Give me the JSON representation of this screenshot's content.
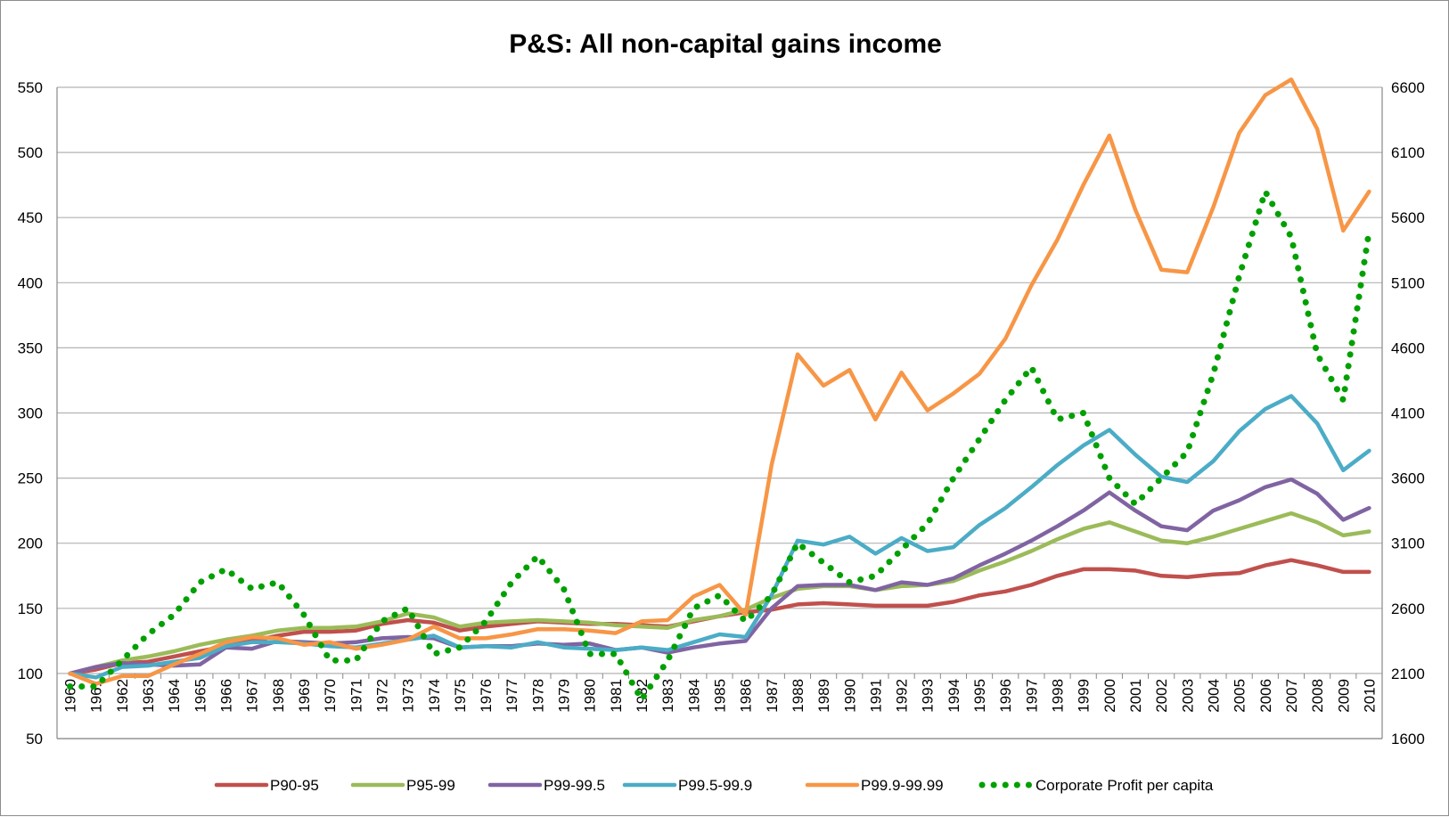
{
  "chart_data": {
    "type": "line",
    "title": "P&S: All non-capital gains income",
    "xlabel": "",
    "ylabel": "",
    "y2label": "",
    "ylim": [
      50,
      550
    ],
    "y2lim": [
      1600,
      6600
    ],
    "yticks": [
      50,
      100,
      150,
      200,
      250,
      300,
      350,
      400,
      450,
      500,
      550
    ],
    "y2ticks": [
      1600,
      2100,
      2600,
      3100,
      3600,
      4100,
      4600,
      5100,
      5600,
      6100,
      6600
    ],
    "grid": true,
    "legend_position": "bottom",
    "x": [
      1960,
      1961,
      1962,
      1963,
      1964,
      1965,
      1966,
      1967,
      1968,
      1969,
      1970,
      1971,
      1972,
      1973,
      1974,
      1975,
      1976,
      1977,
      1978,
      1979,
      1980,
      1981,
      1982,
      1983,
      1984,
      1985,
      1986,
      1987,
      1988,
      1989,
      1990,
      1991,
      1992,
      1993,
      1994,
      1995,
      1996,
      1997,
      1998,
      1999,
      2000,
      2001,
      2002,
      2003,
      2004,
      2005,
      2006,
      2007,
      2008,
      2009,
      2010
    ],
    "series": [
      {
        "name": "P90-95",
        "color": "#c0504d",
        "style": "solid",
        "axis": "left",
        "values": [
          100,
          103,
          108,
          109,
          113,
          117,
          121,
          125,
          129,
          132,
          132,
          133,
          138,
          141,
          139,
          133,
          136,
          138,
          140,
          139,
          138,
          138,
          137,
          136,
          140,
          144,
          147,
          149,
          153,
          154,
          153,
          152,
          152,
          152,
          155,
          160,
          163,
          168,
          175,
          180,
          180,
          179,
          175,
          174,
          176,
          177,
          183,
          187,
          183,
          178,
          178
        ]
      },
      {
        "name": "P95-99",
        "color": "#9bbb59",
        "style": "solid",
        "axis": "left",
        "values": [
          100,
          105,
          110,
          113,
          117,
          122,
          126,
          129,
          133,
          135,
          135,
          136,
          140,
          146,
          143,
          136,
          139,
          140,
          141,
          140,
          139,
          137,
          136,
          135,
          141,
          144,
          149,
          158,
          165,
          167,
          167,
          164,
          167,
          168,
          171,
          179,
          186,
          194,
          203,
          211,
          216,
          209,
          202,
          200,
          205,
          211,
          217,
          223,
          216,
          206,
          209
        ]
      },
      {
        "name": "P99-99.5",
        "color": "#8064a2",
        "style": "solid",
        "axis": "left",
        "values": [
          100,
          105,
          108,
          107,
          106,
          107,
          120,
          119,
          125,
          124,
          123,
          124,
          127,
          128,
          127,
          120,
          121,
          121,
          123,
          122,
          123,
          118,
          120,
          116,
          120,
          123,
          125,
          150,
          167,
          168,
          168,
          164,
          170,
          168,
          173,
          183,
          192,
          202,
          213,
          225,
          239,
          225,
          213,
          210,
          225,
          233,
          243,
          249,
          238,
          218,
          227
        ]
      },
      {
        "name": "P99.5-99.9",
        "color": "#4bacc6",
        "style": "solid",
        "axis": "left",
        "values": [
          100,
          97,
          105,
          106,
          109,
          112,
          121,
          124,
          124,
          123,
          121,
          120,
          123,
          126,
          129,
          120,
          121,
          120,
          124,
          120,
          119,
          118,
          120,
          118,
          124,
          130,
          128,
          160,
          202,
          199,
          205,
          192,
          204,
          194,
          197,
          214,
          227,
          243,
          260,
          275,
          287,
          268,
          251,
          247,
          263,
          286,
          303,
          313,
          292,
          256,
          271
        ]
      },
      {
        "name": "P99.9-99.99",
        "color": "#f79646",
        "style": "solid",
        "axis": "left",
        "values": [
          100,
          92,
          98,
          98,
          107,
          115,
          124,
          128,
          127,
          122,
          124,
          119,
          122,
          126,
          136,
          127,
          127,
          130,
          134,
          134,
          133,
          131,
          140,
          141,
          159,
          168,
          145,
          260,
          345,
          321,
          333,
          295,
          331,
          302,
          315,
          330,
          357,
          398,
          433,
          475,
          513,
          456,
          410,
          408,
          458,
          515,
          544,
          556,
          518,
          440,
          470
        ]
      },
      {
        "name": "Corporate Profit per capita",
        "color": "#00a000",
        "style": "dotted",
        "axis": "right",
        "values": [
          2000,
          2000,
          2200,
          2400,
          2550,
          2800,
          2900,
          2750,
          2800,
          2550,
          2200,
          2200,
          2500,
          2600,
          2250,
          2300,
          2500,
          2800,
          3000,
          2750,
          2250,
          2250,
          1900,
          2200,
          2600,
          2700,
          2500,
          2700,
          3100,
          2950,
          2800,
          2850,
          3050,
          3250,
          3600,
          3900,
          4200,
          4450,
          4050,
          4100,
          3600,
          3400,
          3600,
          3800,
          4400,
          5150,
          5800,
          5450,
          4550,
          4200,
          5500
        ]
      }
    ]
  }
}
